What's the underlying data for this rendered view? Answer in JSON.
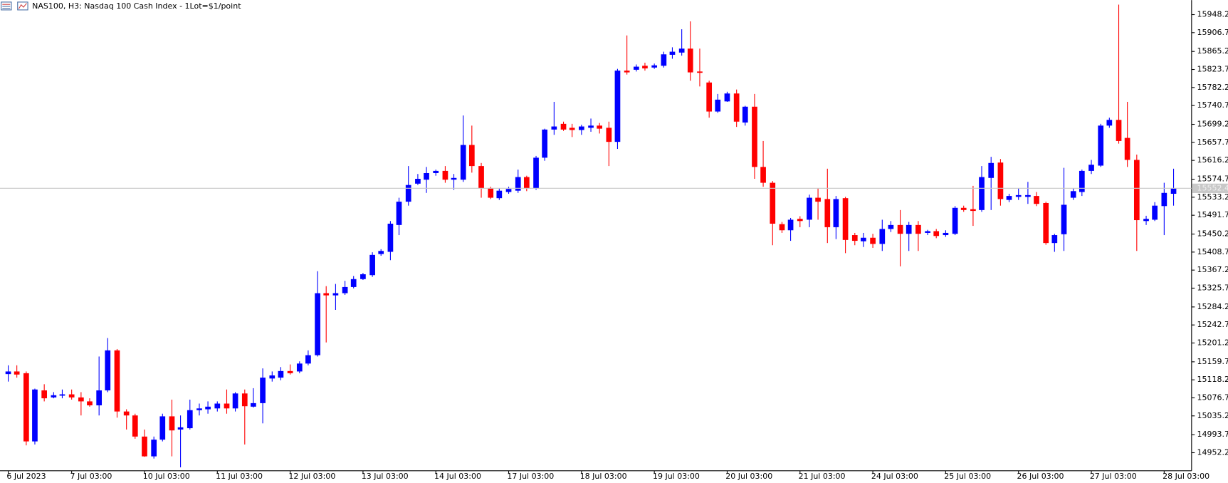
{
  "chart_data": {
    "type": "candlestick",
    "title": "NAS100, H3:  Nasdaq 100 Cash Index - 1Lot=$1/point",
    "categories": [
      "6 Jul 2023",
      null,
      null,
      null,
      null,
      null,
      null,
      "7 Jul 03:00",
      null,
      null,
      null,
      null,
      null,
      null,
      null,
      "10 Jul 03:00",
      null,
      null,
      null,
      null,
      null,
      null,
      null,
      "11 Jul 03:00",
      null,
      null,
      null,
      null,
      null,
      null,
      null,
      "12 Jul 03:00",
      null,
      null,
      null,
      null,
      null,
      null,
      null,
      "13 Jul 03:00",
      null,
      null,
      null,
      null,
      null,
      null,
      null,
      "14 Jul 03:00",
      null,
      null,
      null,
      null,
      null,
      null,
      null,
      "17 Jul 03:00",
      null,
      null,
      null,
      null,
      null,
      null,
      null,
      "18 Jul 03:00",
      null,
      null,
      null,
      null,
      null,
      null,
      null,
      "19 Jul 03:00",
      null,
      null,
      null,
      null,
      null,
      null,
      null,
      "20 Jul 03:00",
      null,
      null,
      null,
      null,
      null,
      null,
      null,
      "21 Jul 03:00",
      null,
      null,
      null,
      null,
      null,
      null,
      null,
      "24 Jul 03:00",
      null,
      null,
      null,
      null,
      null,
      null,
      null,
      "25 Jul 03:00",
      null,
      null,
      null,
      null,
      null,
      null,
      null,
      "26 Jul 03:00",
      null,
      null,
      null,
      null,
      null,
      null,
      null,
      "27 Jul 03:00",
      null,
      null,
      null,
      null,
      null,
      null,
      null,
      "28 Jul 03:00",
      null
    ],
    "open": [
      15130,
      15136,
      15132,
      14977,
      15093,
      15077,
      15081,
      15084,
      15077,
      15068,
      15059,
      15093,
      15184,
      15045,
      15036,
      14988,
      14943,
      14981,
      15034,
      15004,
      15007,
      15048,
      15050,
      15052,
      15063,
      15052,
      15086,
      15056,
      15064,
      15120,
      15122,
      15137,
      15136,
      15154,
      15173,
      15314,
      15309,
      15314,
      15328,
      15346,
      15355,
      15403,
      15408,
      15469,
      15522,
      15563,
      15572,
      15587,
      15592,
      15572,
      15572,
      15651,
      15603,
      15553,
      15530,
      15544,
      15547,
      15578,
      15553,
      15622,
      15686,
      15699,
      15690,
      15685,
      15690,
      15695,
      15690,
      15658,
      15820,
      15822,
      15831,
      15827,
      15831,
      15856,
      15861,
      15870,
      15818,
      15793,
      15727,
      15750,
      15768,
      15702,
      15738,
      15601,
      15565,
      15471,
      15457,
      15483,
      15481,
      15531,
      15528,
      15464,
      15530,
      15446,
      15432,
      15440,
      15426,
      15460,
      15469,
      15449,
      15469,
      15451,
      15455,
      15446,
      15449,
      15508,
      15505,
      15503,
      15576,
      15611,
      15526,
      15533,
      15533,
      15535,
      15519,
      15428,
      15448,
      15531,
      15544,
      15592,
      15604,
      15695,
      15708,
      15667,
      15617,
      15478,
      15481,
      15512,
      15540
    ],
    "high": [
      15150,
      15150,
      15136,
      15097,
      15107,
      15089,
      15095,
      15095,
      15089,
      15075,
      15170,
      15212,
      15187,
      15050,
      15040,
      15004,
      14988,
      15040,
      15072,
      15036,
      15072,
      15063,
      15068,
      15068,
      15095,
      15089,
      15095,
      15098,
      15143,
      15136,
      15146,
      15152,
      15159,
      15184,
      15364,
      15330,
      15335,
      15342,
      15353,
      15360,
      15407,
      15414,
      15478,
      15531,
      15603,
      15585,
      15601,
      15595,
      15603,
      15585,
      15718,
      15695,
      15610,
      15556,
      15553,
      15556,
      15595,
      15581,
      15626,
      15688,
      15749,
      15704,
      15699,
      15697,
      15711,
      15701,
      15704,
      15824,
      15900,
      15834,
      15838,
      15836,
      15863,
      15873,
      15914,
      15932,
      15870,
      15797,
      15767,
      15772,
      15777,
      15740,
      15767,
      15660,
      15569,
      15476,
      15485,
      15489,
      15538,
      15553,
      15597,
      15535,
      15533,
      15451,
      15451,
      15449,
      15481,
      15478,
      15503,
      15476,
      15478,
      15458,
      15460,
      15457,
      15512,
      15513,
      15558,
      15603,
      15624,
      15619,
      15540,
      15553,
      15567,
      15544,
      15522,
      15449,
      15599,
      15553,
      15595,
      15617,
      15699,
      15713,
      15970,
      15749,
      15629,
      15490,
      15521,
      15565,
      15597
    ],
    "low": [
      15113,
      15122,
      14968,
      14970,
      15068,
      15075,
      15075,
      15072,
      15036,
      15056,
      15036,
      15089,
      15031,
      15004,
      14983,
      14942,
      14938,
      14977,
      14943,
      14918,
      15004,
      15036,
      15040,
      15045,
      15040,
      15045,
      14970,
      15054,
      15018,
      15113,
      15116,
      15129,
      15132,
      15150,
      15170,
      15202,
      15276,
      15310,
      15325,
      15344,
      15351,
      15399,
      15389,
      15446,
      15513,
      15560,
      15542,
      15581,
      15565,
      15549,
      15567,
      15588,
      15531,
      15528,
      15526,
      15540,
      15542,
      15546,
      15549,
      15615,
      15674,
      15683,
      15669,
      15674,
      15681,
      15677,
      15603,
      15642,
      15811,
      15818,
      15820,
      15824,
      15827,
      15847,
      15854,
      15797,
      15784,
      15713,
      15724,
      15749,
      15692,
      15695,
      15574,
      15556,
      15423,
      15451,
      15433,
      15464,
      15464,
      15481,
      15428,
      15437,
      15405,
      15423,
      15419,
      15417,
      15410,
      15453,
      15375,
      15410,
      15410,
      15446,
      15439,
      15442,
      15446,
      15499,
      15467,
      15499,
      15503,
      15513,
      15521,
      15526,
      15517,
      15512,
      15424,
      15408,
      15410,
      15526,
      15535,
      15585,
      15601,
      15690,
      15654,
      15601,
      15410,
      15469,
      15478,
      15446,
      15513
    ],
    "close": [
      15136,
      15129,
      14977,
      15095,
      15075,
      15082,
      15084,
      15077,
      15068,
      15059,
      15093,
      15184,
      15045,
      15036,
      14988,
      14943,
      14981,
      15034,
      15002,
      15009,
      15048,
      15052,
      15056,
      15063,
      15052,
      15086,
      15057,
      15064,
      15122,
      15127,
      15137,
      15132,
      15154,
      15173,
      15314,
      15309,
      15314,
      15328,
      15346,
      15357,
      15401,
      15410,
      15472,
      15522,
      15560,
      15574,
      15587,
      15592,
      15572,
      15576,
      15651,
      15603,
      15553,
      15531,
      15547,
      15551,
      15578,
      15553,
      15622,
      15686,
      15693,
      15686,
      15685,
      15693,
      15695,
      15688,
      15658,
      15820,
      15816,
      15829,
      15825,
      15832,
      15857,
      15863,
      15870,
      15816,
      15815,
      15727,
      15754,
      15768,
      15704,
      15738,
      15601,
      15565,
      15472,
      15457,
      15481,
      15478,
      15531,
      15522,
      15464,
      15528,
      15435,
      15433,
      15440,
      15426,
      15460,
      15469,
      15449,
      15469,
      15449,
      15455,
      15444,
      15451,
      15508,
      15503,
      15501,
      15578,
      15610,
      15528,
      15535,
      15537,
      15537,
      15517,
      15428,
      15446,
      15515,
      15546,
      15592,
      15606,
      15695,
      15708,
      15660,
      15617,
      15480,
      15483,
      15513,
      15542,
      15552.4
    ],
    "up_color": "#0000ff",
    "down_color": "#ff0000",
    "ylim": [
      14911.2,
      15980.3
    ],
    "yticks": [
      15948.2,
      15906.7,
      15865.2,
      15823.7,
      15782.2,
      15740.7,
      15699.2,
      15657.7,
      15616.2,
      15574.7,
      15533.2,
      15491.7,
      15450.2,
      15408.7,
      15367.2,
      15325.7,
      15284.2,
      15242.7,
      15201.2,
      15159.7,
      15118.2,
      15076.7,
      15035.2,
      14993.7,
      14952.2
    ],
    "grid": false
  }
}
